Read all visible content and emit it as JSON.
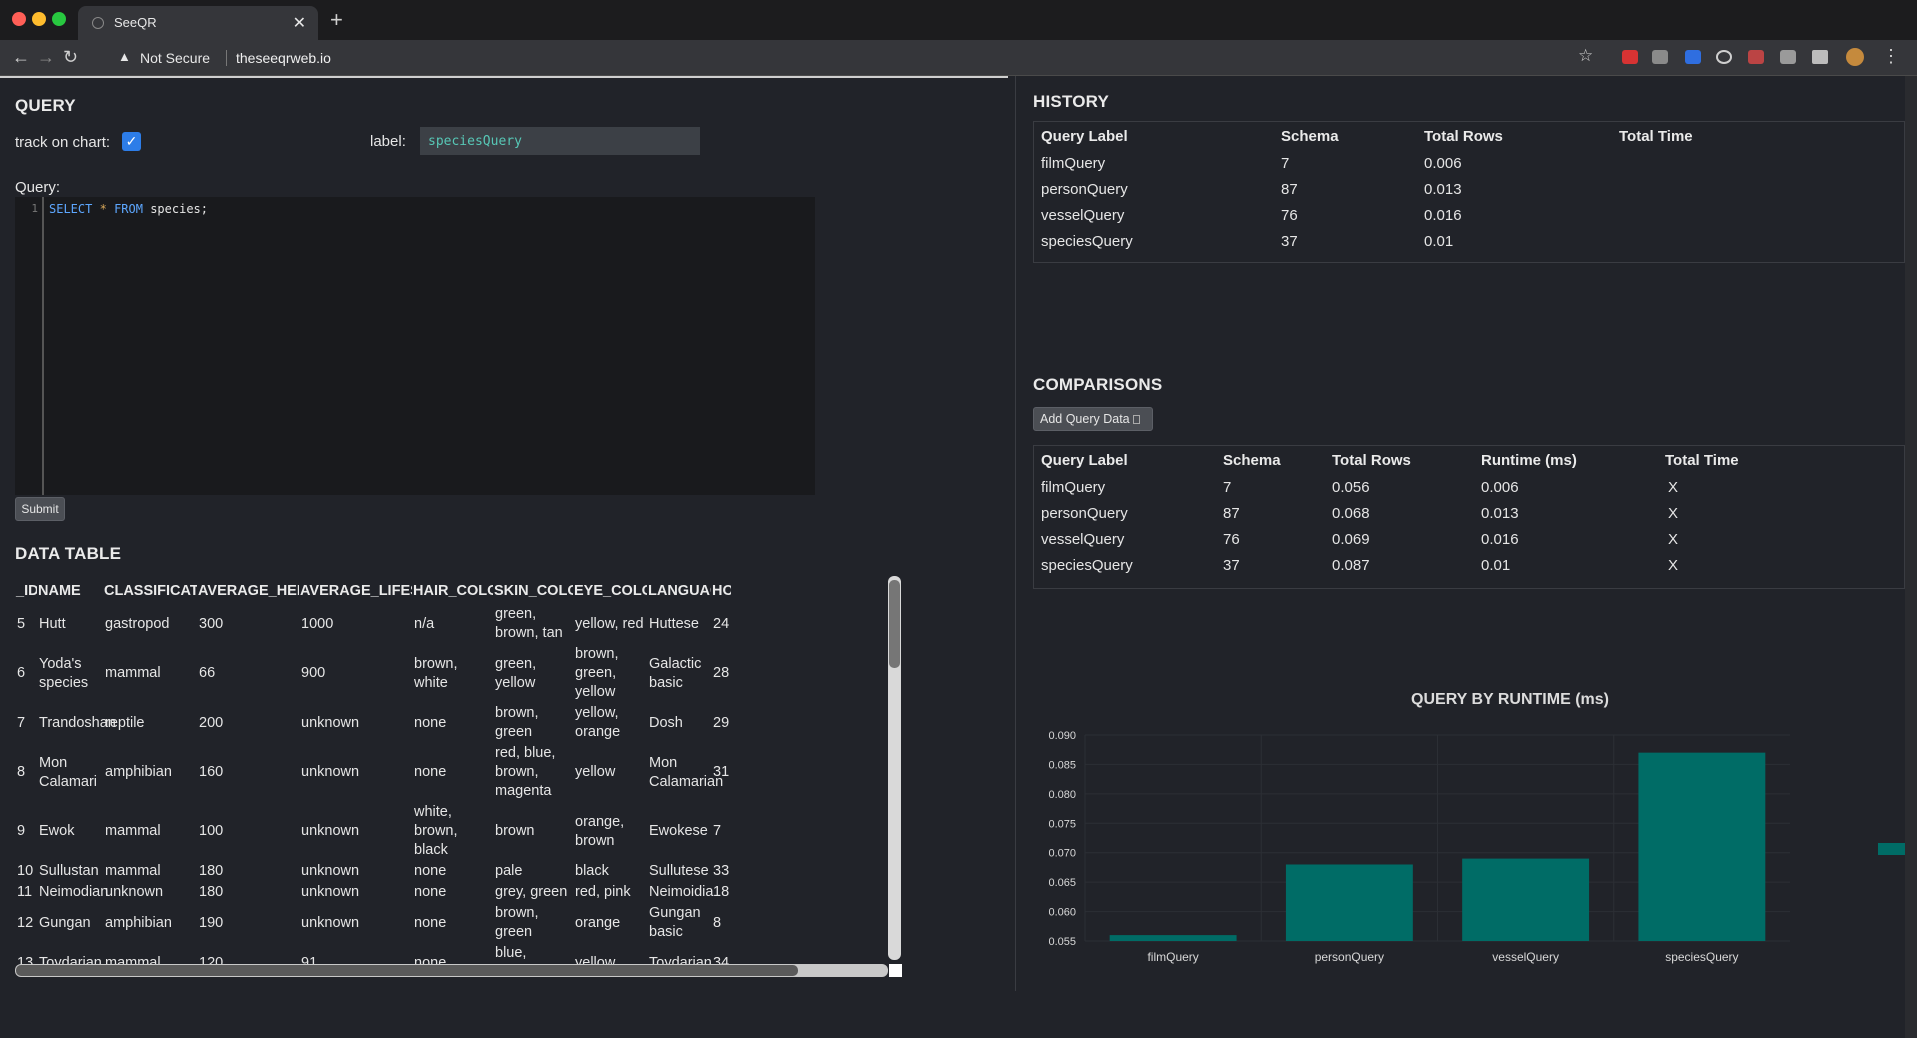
{
  "browser": {
    "tab_title": "SeeQR",
    "security_text": "Not Secure",
    "url": "theseeqrweb.io"
  },
  "query": {
    "title": "QUERY",
    "track_label": "track on chart:",
    "label_label": "label:",
    "label_value": "speciesQuery",
    "query_label": "Query:",
    "line_number": "1",
    "code": {
      "kw1": "SELECT",
      "star": "*",
      "kw2": "FROM",
      "rest": "species;"
    },
    "submit_label": "Submit"
  },
  "data_table": {
    "title": "DATA TABLE",
    "columns": [
      "_ID",
      "NAME",
      "CLASSIFICATION",
      "AVERAGE_HEIGHT",
      "AVERAGE_LIFESPAN",
      "HAIR_COLORS",
      "SKIN_COLORS",
      "EYE_COLORS",
      "LANGUAGE",
      "HO"
    ],
    "rows": [
      [
        "5",
        "Hutt",
        "gastropod",
        "300",
        "1000",
        "n/a",
        "green, brown, tan",
        "yellow, red",
        "Huttese",
        "24"
      ],
      [
        "6",
        "Yoda's species",
        "mammal",
        "66",
        "900",
        "brown, white",
        "green, yellow",
        "brown, green, yellow",
        "Galactic basic",
        "28"
      ],
      [
        "7",
        "Trandoshan",
        "reptile",
        "200",
        "unknown",
        "none",
        "brown, green",
        "yellow, orange",
        "Dosh",
        "29"
      ],
      [
        "8",
        "Mon Calamari",
        "amphibian",
        "160",
        "unknown",
        "none",
        "red, blue, brown, magenta",
        "yellow",
        "Mon Calamarian",
        "31"
      ],
      [
        "9",
        "Ewok",
        "mammal",
        "100",
        "unknown",
        "white, brown, black",
        "brown",
        "orange, brown",
        "Ewokese",
        "7"
      ],
      [
        "10",
        "Sullustan",
        "mammal",
        "180",
        "unknown",
        "none",
        "pale",
        "black",
        "Sullutese",
        "33"
      ],
      [
        "11",
        "Neimodian",
        "unknown",
        "180",
        "unknown",
        "none",
        "grey, green",
        "red, pink",
        "Neimoidia",
        "18"
      ],
      [
        "12",
        "Gungan",
        "amphibian",
        "190",
        "unknown",
        "none",
        "brown, green",
        "orange",
        "Gungan basic",
        "8"
      ],
      [
        "13",
        "Toydarian",
        "mammal",
        "120",
        "91",
        "none",
        "blue, green,",
        "yellow",
        "Toydarian",
        "34"
      ]
    ]
  },
  "history": {
    "title": "HISTORY",
    "columns": [
      "Query Label",
      "Schema",
      "Total Rows",
      "Total Time"
    ],
    "rows": [
      [
        "filmQuery",
        "7",
        "0.006",
        ""
      ],
      [
        "personQuery",
        "87",
        "0.013",
        ""
      ],
      [
        "vesselQuery",
        "76",
        "0.016",
        ""
      ],
      [
        "speciesQuery",
        "37",
        "0.01",
        ""
      ]
    ]
  },
  "comparisons": {
    "title": "COMPARISONS",
    "add_button": "Add Query Data",
    "columns": [
      "Query Label",
      "Schema",
      "Total Rows",
      "Runtime (ms)",
      "Total Time"
    ],
    "rows": [
      [
        "filmQuery",
        "7",
        "0.056",
        "0.006",
        "X"
      ],
      [
        "personQuery",
        "87",
        "0.068",
        "0.013",
        "X"
      ],
      [
        "vesselQuery",
        "76",
        "0.069",
        "0.016",
        "X"
      ],
      [
        "speciesQuery",
        "37",
        "0.087",
        "0.01",
        "X"
      ]
    ]
  },
  "chart_data": {
    "type": "bar",
    "title": "QUERY BY RUNTIME (ms)",
    "categories": [
      "filmQuery",
      "personQuery",
      "vesselQuery",
      "speciesQuery"
    ],
    "values": [
      0.056,
      0.068,
      0.069,
      0.087
    ],
    "ylim": [
      0.055,
      0.09
    ],
    "yticks": [
      "0.090",
      "0.085",
      "0.080",
      "0.075",
      "0.070",
      "0.065",
      "0.060",
      "0.055"
    ],
    "grid": true,
    "bar_color": "#006c66"
  },
  "colors": {
    "background": "#212329",
    "accent_checkbox": "#2d7de8",
    "label_text": "#57c7b6"
  }
}
